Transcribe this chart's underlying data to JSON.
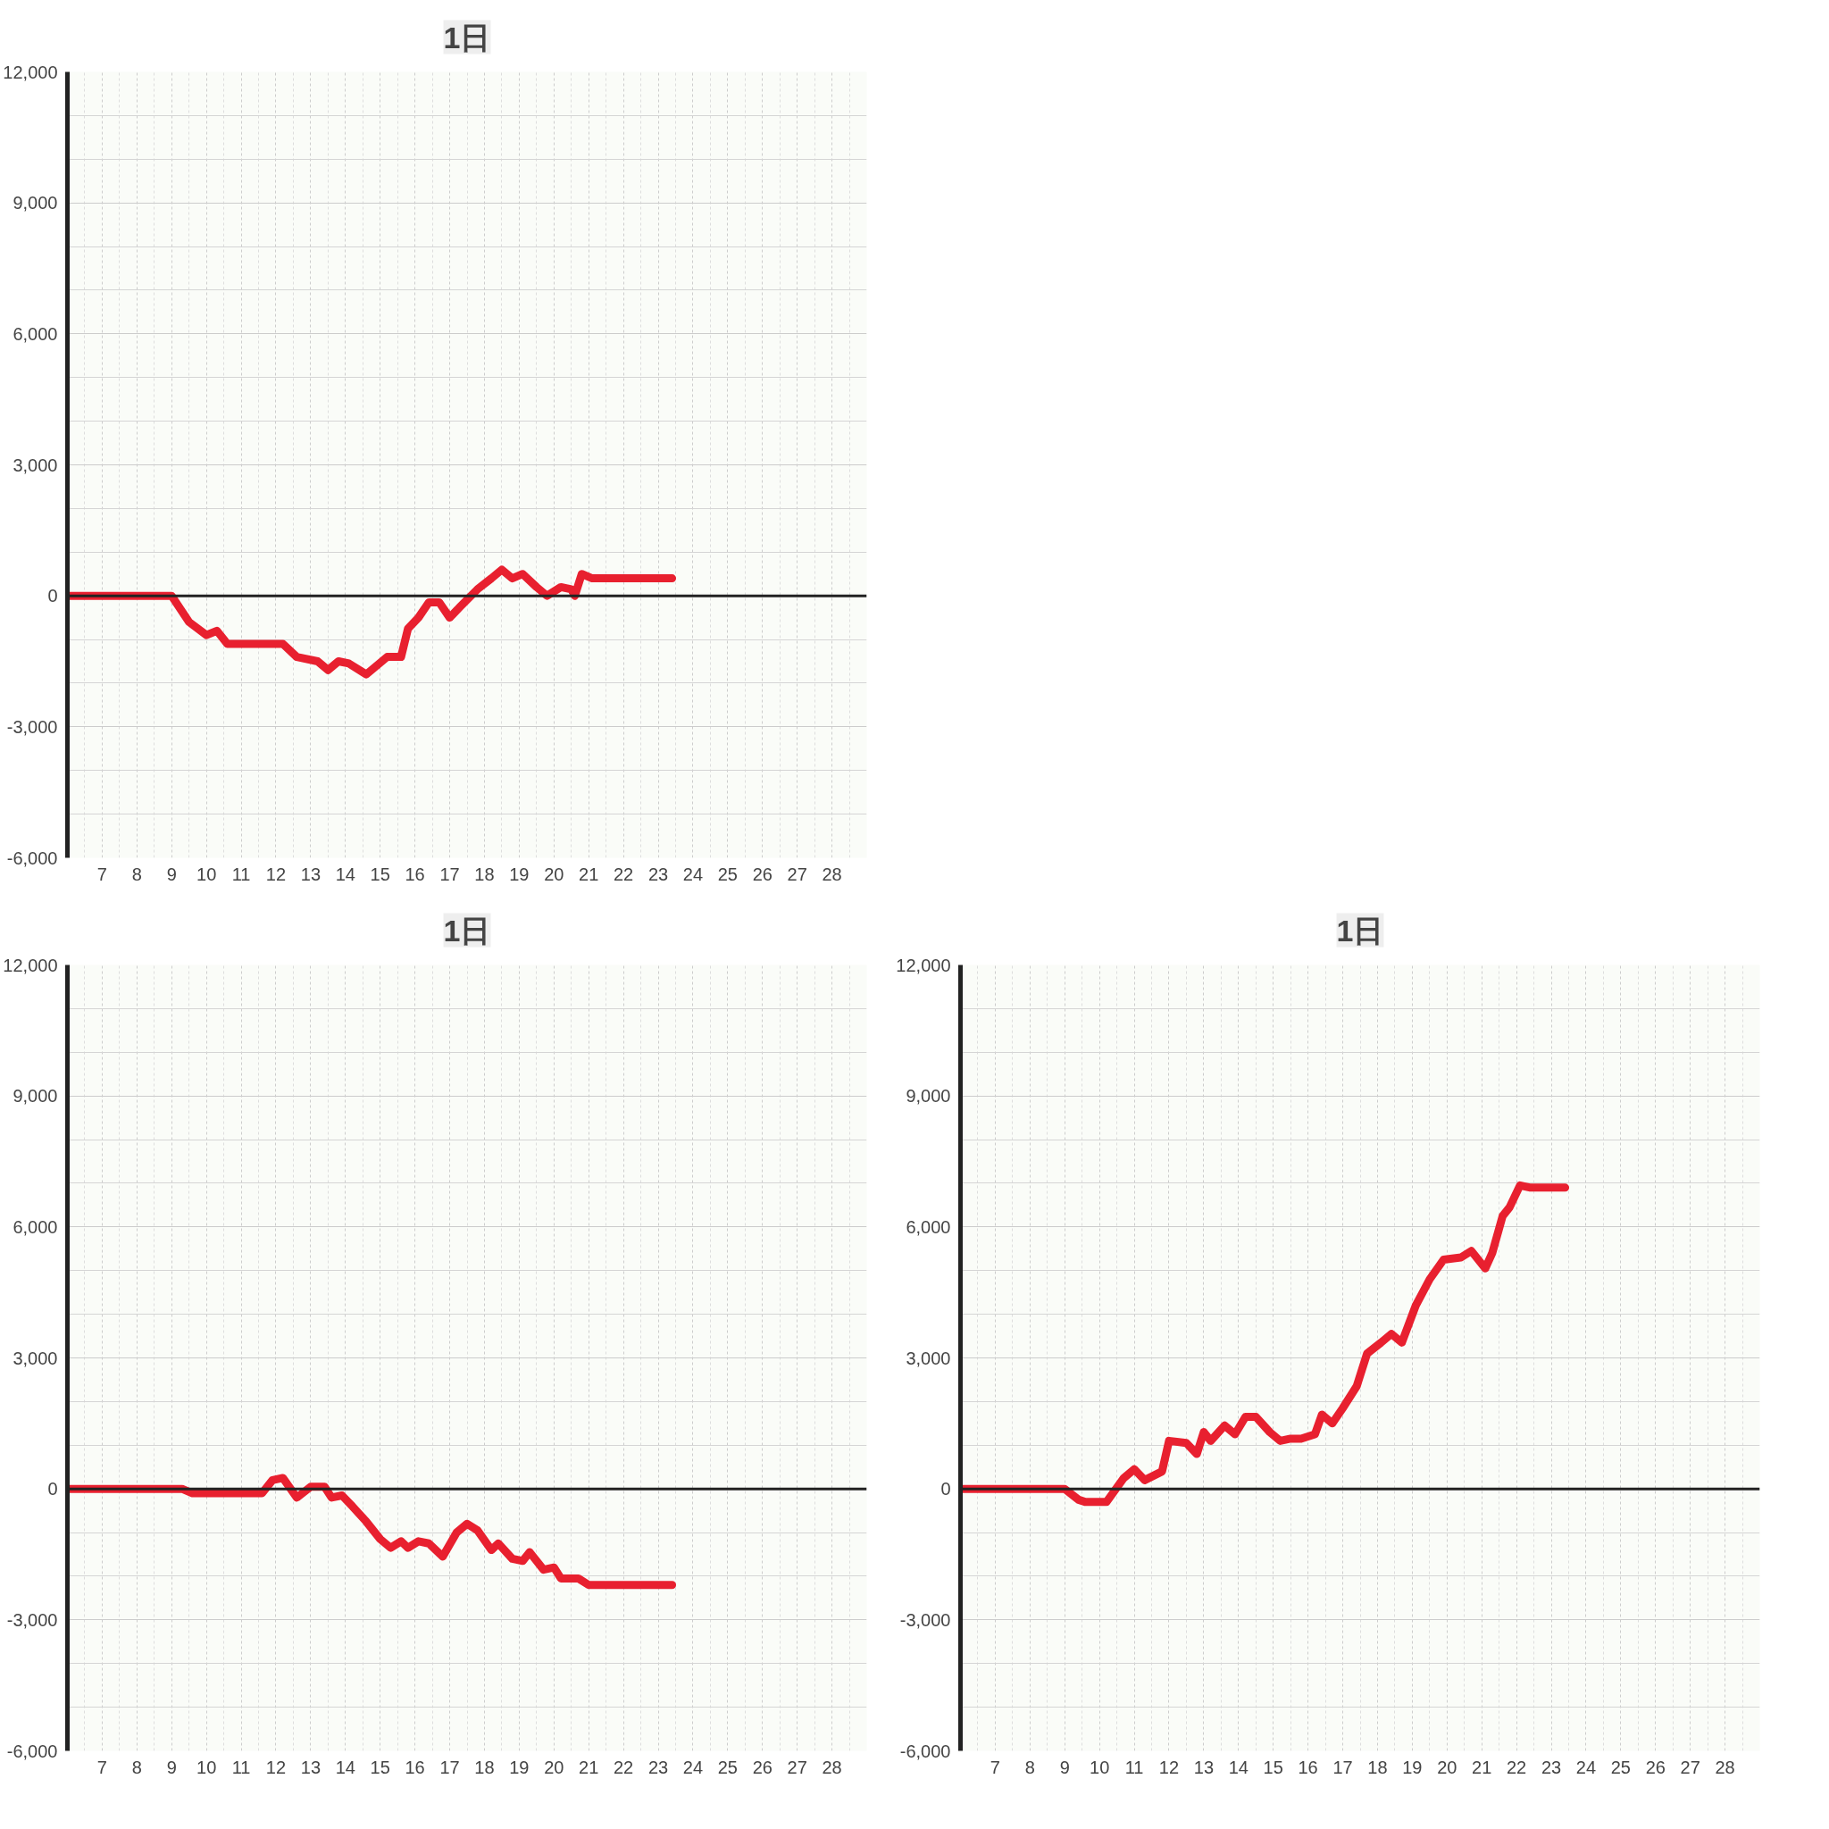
{
  "chart_data": [
    {
      "type": "line",
      "title": "1日",
      "xlim": [
        6,
        29
      ],
      "ylim": [
        -6000,
        12000
      ],
      "xticks": [
        7,
        8,
        9,
        10,
        11,
        12,
        13,
        14,
        15,
        16,
        17,
        18,
        19,
        20,
        21,
        22,
        23,
        24,
        25,
        26,
        27,
        28
      ],
      "yticks": [
        {
          "value": -6000,
          "label": "-6,000"
        },
        {
          "value": -3000,
          "label": "-3,000"
        },
        0,
        {
          "value": 3000,
          "label": "3,000"
        },
        {
          "value": 6000,
          "label": "6,000"
        },
        {
          "value": 9000,
          "label": "9,000"
        },
        {
          "value": 12000,
          "label": "12,000"
        }
      ],
      "grid": true,
      "ref_lines": [
        {
          "axis": "y",
          "value": 0,
          "color": "#222222"
        }
      ],
      "series": [
        {
          "color": "#e8202f",
          "x": [
            6,
            9.0,
            9.5,
            10.0,
            10.3,
            10.6,
            11.5,
            12.2,
            12.6,
            13.2,
            13.5,
            13.8,
            14.1,
            14.6,
            15.2,
            15.6,
            15.8,
            16.1,
            16.4,
            16.7,
            17.0,
            17.3,
            17.8,
            18.2,
            18.5,
            18.8,
            19.1,
            19.5,
            19.8,
            20.2,
            20.5,
            20.6,
            20.8,
            21.1,
            23.4
          ],
          "values": [
            0,
            0,
            -600,
            -900,
            -800,
            -1100,
            -1100,
            -1100,
            -1400,
            -1500,
            -1700,
            -1500,
            -1550,
            -1800,
            -1400,
            -1400,
            -750,
            -500,
            -150,
            -150,
            -500,
            -250,
            150,
            400,
            600,
            400,
            500,
            200,
            0,
            200,
            150,
            0,
            500,
            400,
            400
          ]
        }
      ]
    },
    {
      "type": "line",
      "title": "1日",
      "xlim": [
        6,
        29
      ],
      "ylim": [
        -6000,
        12000
      ],
      "xticks": [
        7,
        8,
        9,
        10,
        11,
        12,
        13,
        14,
        15,
        16,
        17,
        18,
        19,
        20,
        21,
        22,
        23,
        24,
        25,
        26,
        27,
        28
      ],
      "yticks": [
        {
          "value": -6000,
          "label": "-6,000"
        },
        {
          "value": -3000,
          "label": "-3,000"
        },
        0,
        {
          "value": 3000,
          "label": "3,000"
        },
        {
          "value": 6000,
          "label": "6,000"
        },
        {
          "value": 9000,
          "label": "9,000"
        },
        {
          "value": 12000,
          "label": "12,000"
        }
      ],
      "grid": true,
      "ref_lines": [
        {
          "axis": "y",
          "value": 0,
          "color": "#222222"
        }
      ],
      "series": [
        {
          "color": "#e8202f",
          "x": [
            6,
            9.3,
            9.6,
            11.2,
            11.6,
            11.9,
            12.2,
            12.6,
            13.0,
            13.4,
            13.6,
            13.9,
            14.2,
            14.6,
            15.0,
            15.3,
            15.6,
            15.8,
            16.1,
            16.4,
            16.8,
            17.2,
            17.5,
            17.8,
            18.2,
            18.4,
            18.8,
            19.1,
            19.3,
            19.7,
            20.0,
            20.2,
            20.7,
            21.0,
            23.4
          ],
          "values": [
            0,
            0,
            -100,
            -100,
            -100,
            200,
            250,
            -200,
            50,
            50,
            -200,
            -150,
            -400,
            -750,
            -1150,
            -1350,
            -1200,
            -1350,
            -1200,
            -1250,
            -1550,
            -1000,
            -800,
            -950,
            -1400,
            -1250,
            -1600,
            -1650,
            -1450,
            -1850,
            -1800,
            -2050,
            -2050,
            -2200,
            -2200
          ]
        }
      ]
    },
    {
      "type": "line",
      "title": "1日",
      "xlim": [
        6,
        29
      ],
      "ylim": [
        -6000,
        12000
      ],
      "xticks": [
        7,
        8,
        9,
        10,
        11,
        12,
        13,
        14,
        15,
        16,
        17,
        18,
        19,
        20,
        21,
        22,
        23,
        24,
        25,
        26,
        27,
        28
      ],
      "yticks": [
        {
          "value": -6000,
          "label": "-6,000"
        },
        {
          "value": -3000,
          "label": "-3,000"
        },
        0,
        {
          "value": 3000,
          "label": "3,000"
        },
        {
          "value": 6000,
          "label": "6,000"
        },
        {
          "value": 9000,
          "label": "9,000"
        },
        {
          "value": 12000,
          "label": "12,000"
        }
      ],
      "grid": true,
      "ref_lines": [
        {
          "axis": "y",
          "value": 0,
          "color": "#222222"
        }
      ],
      "series": [
        {
          "color": "#e8202f",
          "x": [
            6,
            9.0,
            9.4,
            9.6,
            10.2,
            10.7,
            11.0,
            11.3,
            11.8,
            12.0,
            12.5,
            12.8,
            13.0,
            13.2,
            13.6,
            13.9,
            14.2,
            14.5,
            14.9,
            15.2,
            15.5,
            15.8,
            16.2,
            16.4,
            16.7,
            17.0,
            17.4,
            17.7,
            18.1,
            18.4,
            18.7,
            19.1,
            19.5,
            19.9,
            20.4,
            20.7,
            21.1,
            21.3,
            21.6,
            21.8,
            22.1,
            22.4,
            23.4
          ],
          "values": [
            0,
            0,
            -250,
            -300,
            -300,
            250,
            450,
            200,
            400,
            1100,
            1050,
            800,
            1300,
            1100,
            1450,
            1250,
            1650,
            1650,
            1300,
            1100,
            1150,
            1150,
            1250,
            1700,
            1500,
            1850,
            2350,
            3100,
            3350,
            3550,
            3350,
            4200,
            4800,
            5250,
            5300,
            5450,
            5050,
            5400,
            6250,
            6450,
            6950,
            6900,
            6900
          ]
        }
      ]
    }
  ]
}
